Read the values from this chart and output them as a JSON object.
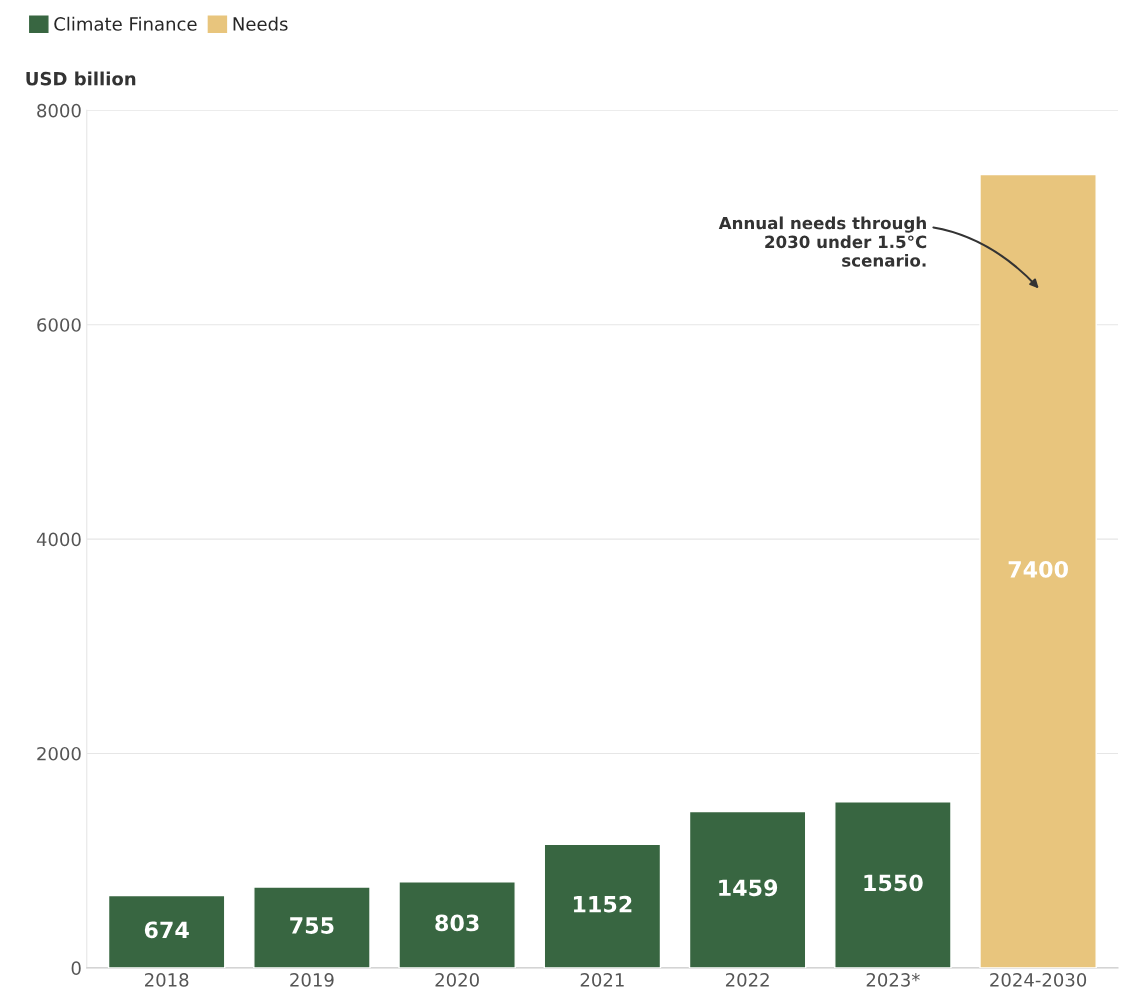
{
  "chart_data": {
    "type": "bar",
    "ylabel": "USD billion",
    "categories": [
      "2018",
      "2019",
      "2020",
      "2021",
      "2022",
      "2023*",
      "2024-2030"
    ],
    "series": [
      {
        "name": "Climate Finance",
        "color": "#386641",
        "values": [
          674,
          755,
          803,
          1152,
          1459,
          1550,
          null
        ]
      },
      {
        "name": "Needs",
        "color": "#e8c57d",
        "values": [
          null,
          null,
          null,
          null,
          null,
          null,
          7400
        ]
      }
    ],
    "ylim": [
      0,
      8000
    ],
    "yticks": [
      0,
      2000,
      4000,
      6000,
      8000
    ],
    "grid": "y",
    "legend": "top left",
    "data_labels": true,
    "annotations": [
      "Annual needs through\n2030 under 1.5°C\nscenario."
    ]
  }
}
